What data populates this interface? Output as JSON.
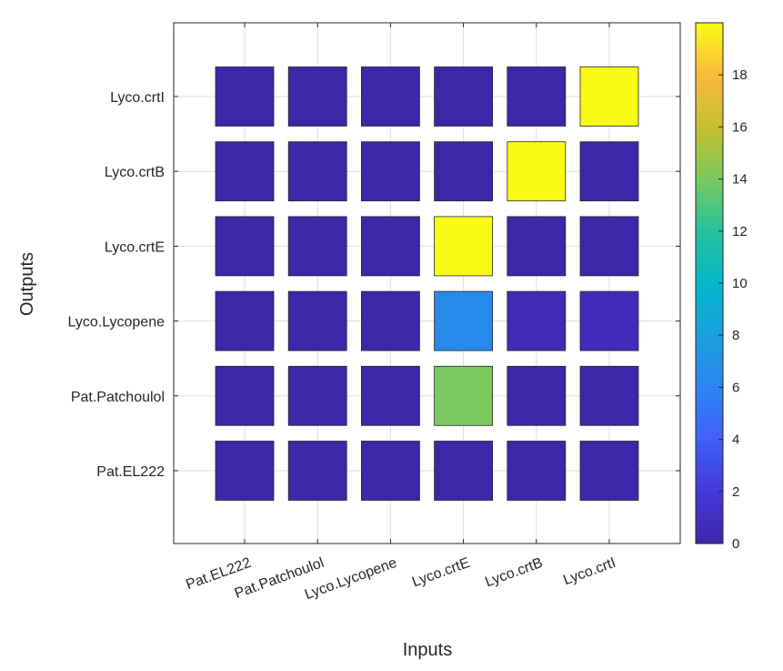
{
  "chart_data": {
    "type": "heatmap",
    "title": "",
    "xlabel": "Inputs",
    "ylabel": "Outputs",
    "x_categories": [
      "Pat.EL222",
      "Pat.Patchoulol",
      "Lyco.Lycopene",
      "Lyco.crtE",
      "Lyco.crtB",
      "Lyco.crtI"
    ],
    "y_categories": [
      "Lyco.crtI",
      "Lyco.crtB",
      "Lyco.crtE",
      "Lyco.Lycopene",
      "Pat.Patchoulol",
      "Pat.EL222"
    ],
    "values": [
      [
        0,
        0,
        0,
        0,
        0,
        20
      ],
      [
        0,
        0,
        0,
        0,
        20,
        0
      ],
      [
        0,
        0,
        0,
        20,
        0,
        0
      ],
      [
        0,
        0,
        0,
        6.5,
        0.5,
        0.7
      ],
      [
        0,
        0,
        0,
        14,
        0,
        0
      ],
      [
        0,
        0,
        0,
        0,
        0,
        0
      ]
    ],
    "colorbar": {
      "min": 0,
      "max": 20,
      "ticks": [
        0,
        2,
        4,
        6,
        8,
        10,
        12,
        14,
        16,
        18
      ],
      "colormap": "parula"
    },
    "grid": true
  }
}
